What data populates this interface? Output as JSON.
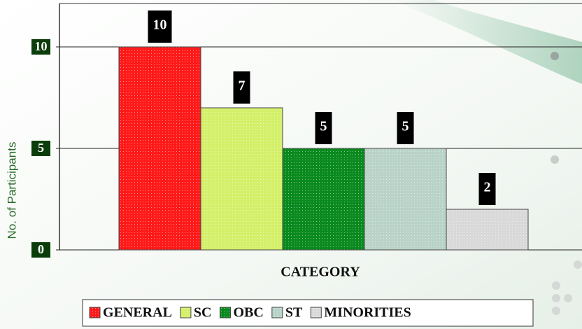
{
  "chart_data": {
    "type": "bar",
    "y_label": "No. of Participants",
    "x_label": "CATEGORY",
    "categories": [
      "GENERAL",
      "SC",
      "OBC",
      "ST",
      "MINORITIES"
    ],
    "values": [
      10,
      7,
      5,
      5,
      2
    ],
    "colors": [
      "#ff1a1a",
      "#d4f06a",
      "#0a8a1e",
      "#b9d3c8",
      "#d9d9d9"
    ],
    "ylim": [
      0,
      12
    ],
    "yticks": [
      0,
      5,
      10
    ],
    "grid": true,
    "legend": "bottom"
  }
}
